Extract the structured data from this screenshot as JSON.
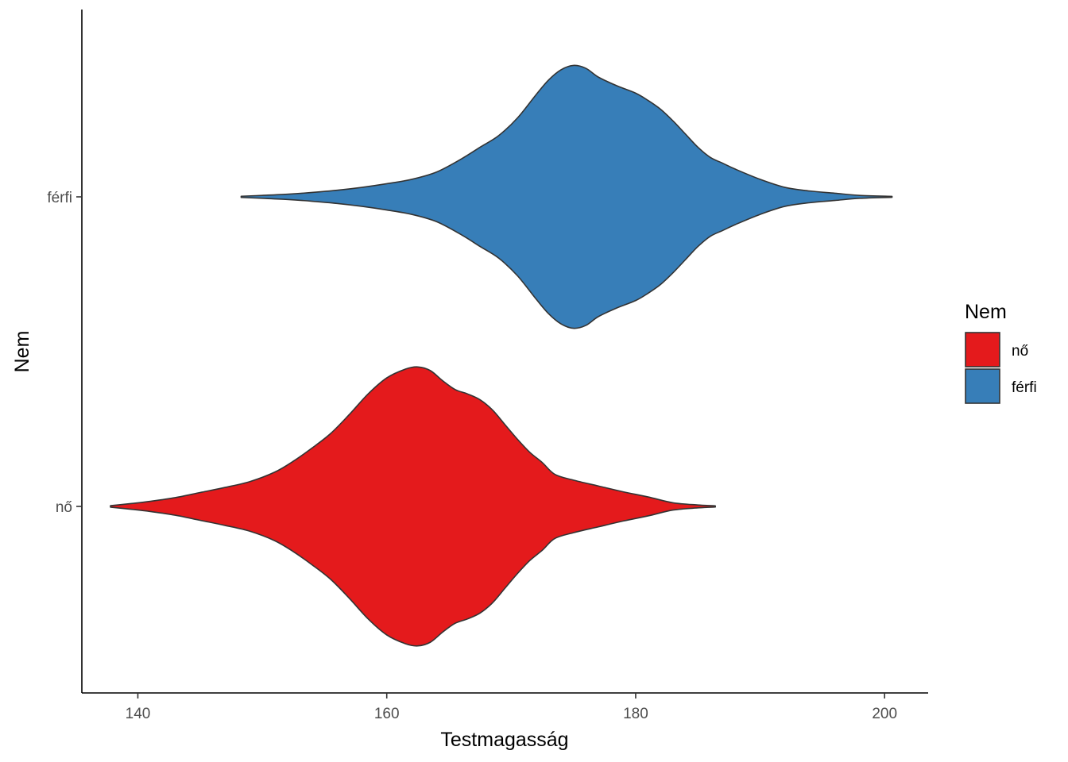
{
  "chart_data": {
    "type": "violin",
    "orientation": "horizontal",
    "xlabel": "Testmagasság",
    "ylabel": "Nem",
    "xlim": [
      135.5,
      203.5
    ],
    "xticks": [
      140,
      160,
      180,
      200
    ],
    "categories": [
      "nő",
      "férfi"
    ],
    "grid": false,
    "legend": {
      "title": "Nem",
      "position": "right",
      "entries": [
        {
          "label": "nő",
          "color": "#E41A1C"
        },
        {
          "label": "férfi",
          "color": "#377EB8"
        }
      ]
    },
    "series": [
      {
        "name": "nő",
        "color": "#E41A1C",
        "range": [
          137.8,
          186.4
        ],
        "density_profile": [
          [
            137.8,
            0.005
          ],
          [
            139.5,
            0.02
          ],
          [
            141.0,
            0.035
          ],
          [
            143.0,
            0.06
          ],
          [
            145.0,
            0.095
          ],
          [
            147.0,
            0.13
          ],
          [
            149.0,
            0.17
          ],
          [
            151.0,
            0.235
          ],
          [
            152.5,
            0.31
          ],
          [
            154.0,
            0.4
          ],
          [
            155.5,
            0.5
          ],
          [
            157.0,
            0.63
          ],
          [
            158.5,
            0.77
          ],
          [
            160.0,
            0.88
          ],
          [
            161.5,
            0.94
          ],
          [
            162.5,
            0.955
          ],
          [
            163.5,
            0.93
          ],
          [
            164.5,
            0.86
          ],
          [
            165.5,
            0.8
          ],
          [
            166.5,
            0.77
          ],
          [
            167.5,
            0.73
          ],
          [
            168.5,
            0.66
          ],
          [
            169.5,
            0.56
          ],
          [
            170.5,
            0.46
          ],
          [
            171.5,
            0.37
          ],
          [
            172.5,
            0.3
          ],
          [
            173.5,
            0.22
          ],
          [
            175.0,
            0.18
          ],
          [
            177.0,
            0.14
          ],
          [
            179.0,
            0.1
          ],
          [
            181.0,
            0.065
          ],
          [
            183.0,
            0.025
          ],
          [
            185.0,
            0.01
          ],
          [
            186.4,
            0.004
          ]
        ]
      },
      {
        "name": "férfi",
        "color": "#377EB8",
        "range": [
          148.3,
          200.6
        ],
        "density_profile": [
          [
            148.3,
            0.004
          ],
          [
            150.0,
            0.01
          ],
          [
            152.0,
            0.018
          ],
          [
            154.0,
            0.03
          ],
          [
            156.0,
            0.045
          ],
          [
            158.0,
            0.065
          ],
          [
            160.0,
            0.09
          ],
          [
            162.0,
            0.12
          ],
          [
            164.0,
            0.17
          ],
          [
            166.0,
            0.26
          ],
          [
            167.5,
            0.34
          ],
          [
            169.0,
            0.42
          ],
          [
            170.5,
            0.54
          ],
          [
            172.0,
            0.7
          ],
          [
            173.0,
            0.8
          ],
          [
            174.0,
            0.87
          ],
          [
            175.0,
            0.9
          ],
          [
            176.0,
            0.88
          ],
          [
            177.0,
            0.82
          ],
          [
            178.5,
            0.76
          ],
          [
            180.0,
            0.71
          ],
          [
            181.0,
            0.66
          ],
          [
            182.0,
            0.6
          ],
          [
            183.0,
            0.52
          ],
          [
            184.0,
            0.43
          ],
          [
            185.0,
            0.34
          ],
          [
            186.0,
            0.27
          ],
          [
            187.0,
            0.23
          ],
          [
            188.0,
            0.19
          ],
          [
            190.0,
            0.12
          ],
          [
            192.0,
            0.065
          ],
          [
            194.0,
            0.04
          ],
          [
            196.0,
            0.025
          ],
          [
            198.0,
            0.01
          ],
          [
            200.6,
            0.003
          ]
        ]
      }
    ]
  }
}
